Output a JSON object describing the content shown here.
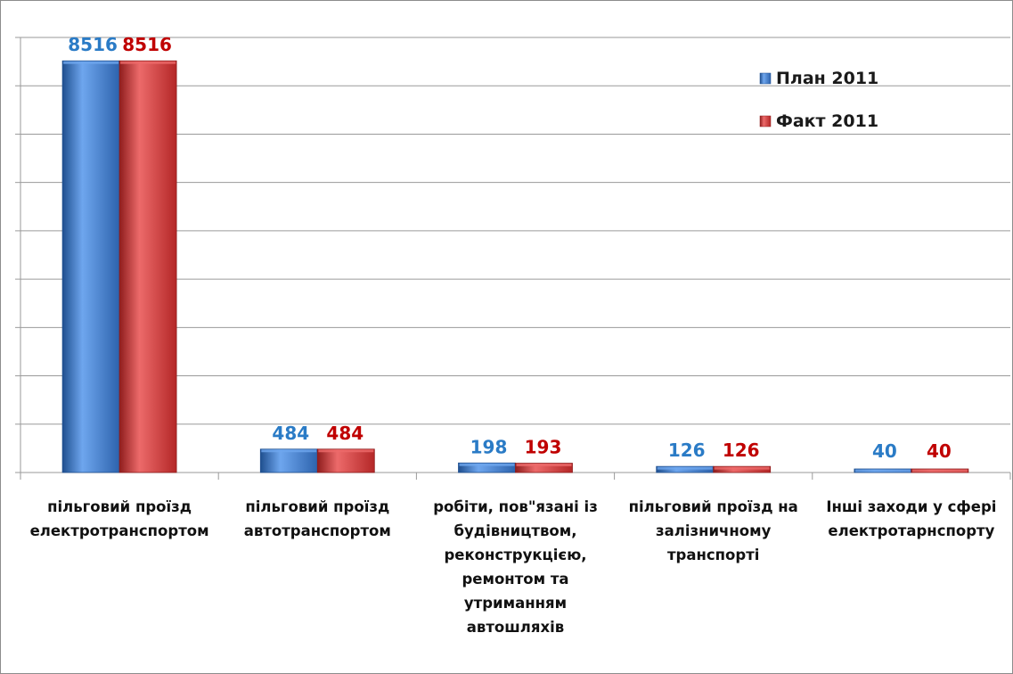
{
  "colors": {
    "plan": "#3a78c9",
    "plan_light": "#6ea6ee",
    "plan_dark": "#1f4f8f",
    "fact": "#cc3535",
    "fact_light": "#ec6a6a",
    "fact_dark": "#8f1d1d",
    "plan_label": "#2a7bc6",
    "fact_label": "#c00000",
    "grid": "#9a9a9a"
  },
  "chart_data": {
    "type": "bar",
    "categories": [
      "пільговий проїзд електротранспортом",
      "пільговий проїзд автотранспортом",
      "робіти, пов\"язані із будівництвом, реконструкцією, ремонтом та утриманням автошляхів",
      "пільговий проїзд на залізничному транспорті",
      "Інші заходи у сфері електротарнспорту"
    ],
    "category_lines": [
      [
        "пільговий проїзд",
        "електротранспортом"
      ],
      [
        "пільговий проїзд",
        "автотранспортом"
      ],
      [
        "робіти, пов\"язані із",
        "будівництвом,",
        "реконструкцією,",
        "ремонтом та",
        "утриманням",
        "автошляхів"
      ],
      [
        "пільговий проїзд на",
        "залізничному",
        "транспорті"
      ],
      [
        "Інші заходи у сфері",
        "електротарнспорту"
      ]
    ],
    "series": [
      {
        "name": "План 2011",
        "values": [
          8516,
          484,
          198,
          126,
          40
        ],
        "labels": [
          "8516",
          "484",
          "198",
          "126",
          "40"
        ]
      },
      {
        "name": "Факт 2011",
        "values": [
          8516,
          484,
          193,
          126,
          40
        ],
        "labels": [
          "8516",
          "484",
          "193",
          "126",
          "40"
        ]
      }
    ],
    "ylim": [
      0,
      9000
    ],
    "grid": true,
    "legend_position": "top-right",
    "title": "",
    "xlabel": "",
    "ylabel": ""
  }
}
